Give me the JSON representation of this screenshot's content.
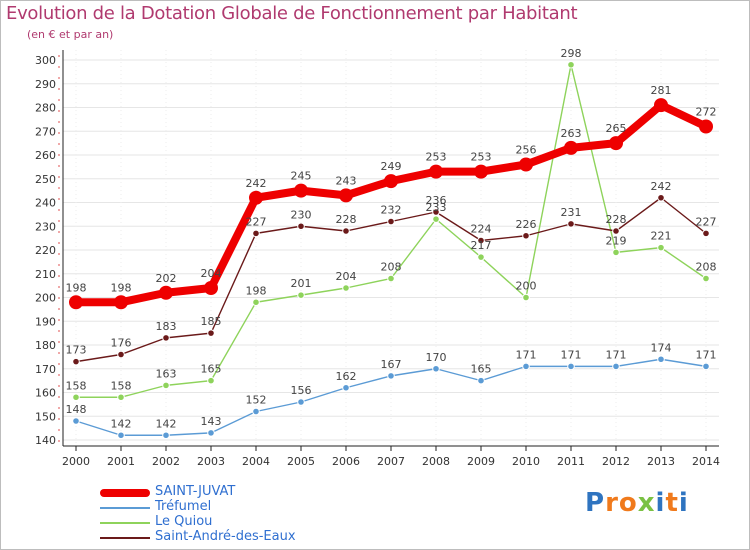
{
  "title": "Evolution de la Dotation Globale de Fonctionnement par Habitant",
  "subtitle": "(en € et par an)",
  "logo": {
    "letters": [
      "P",
      "r",
      "o",
      "x",
      "i",
      "t",
      "i"
    ],
    "colors": [
      "#2f74c0",
      "#f07a1c",
      "#f07a1c",
      "#7ac143",
      "#2f74c0",
      "#f07a1c",
      "#2f74c0"
    ]
  },
  "chart_data": {
    "type": "line",
    "title": "Evolution de la Dotation Globale de Fonctionnement par Habitant",
    "subtitle": "(en € et par an)",
    "xlabel": "",
    "ylabel": "",
    "ylim": [
      140,
      300
    ],
    "yticks": [
      140,
      150,
      160,
      170,
      180,
      190,
      200,
      210,
      220,
      230,
      240,
      250,
      260,
      270,
      280,
      290,
      300
    ],
    "categories": [
      "2000",
      "2001",
      "2002",
      "2003",
      "2004",
      "2005",
      "2006",
      "2007",
      "2008",
      "2009",
      "2010",
      "2011",
      "2012",
      "2013",
      "2014"
    ],
    "series": [
      {
        "name": "Tréfumel",
        "color": "#5b9bd5",
        "values": [
          148,
          142,
          142,
          143,
          152,
          156,
          162,
          167,
          170,
          165,
          171,
          171,
          171,
          174,
          171
        ]
      },
      {
        "name": "Le Quiou",
        "color": "#8ed35b",
        "values": [
          158,
          158,
          163,
          165,
          198,
          201,
          204,
          208,
          233,
          217,
          200,
          298,
          219,
          221,
          208
        ]
      },
      {
        "name": "Saint-André-des-Eaux",
        "color": "#6b1a1a",
        "values": [
          173,
          176,
          183,
          185,
          227,
          230,
          228,
          232,
          236,
          224,
          226,
          231,
          228,
          242,
          227
        ]
      },
      {
        "name": "SAINT-JUVAT",
        "color": "#ee0000",
        "values": [
          198,
          198,
          202,
          204,
          242,
          245,
          243,
          249,
          253,
          253,
          256,
          263,
          265,
          281,
          272
        ]
      }
    ],
    "legend": {
      "position": "bottom-left",
      "order": [
        "SAINT-JUVAT",
        "Tréfumel",
        "Le Quiou",
        "Saint-André-des-Eaux"
      ]
    }
  }
}
